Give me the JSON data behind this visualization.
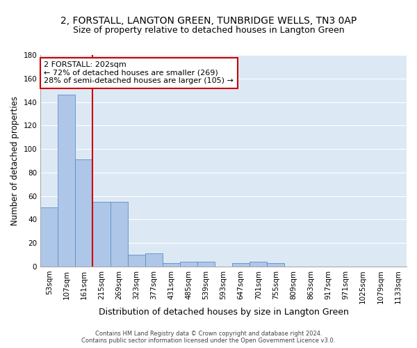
{
  "title": "2, FORSTALL, LANGTON GREEN, TUNBRIDGE WELLS, TN3 0AP",
  "subtitle": "Size of property relative to detached houses in Langton Green",
  "xlabel": "Distribution of detached houses by size in Langton Green",
  "ylabel": "Number of detached properties",
  "footnote1": "Contains HM Land Registry data © Crown copyright and database right 2024.",
  "footnote2": "Contains public sector information licensed under the Open Government Licence v3.0.",
  "bar_labels": [
    "53sqm",
    "107sqm",
    "161sqm",
    "215sqm",
    "269sqm",
    "323sqm",
    "377sqm",
    "431sqm",
    "485sqm",
    "539sqm",
    "593sqm",
    "647sqm",
    "701sqm",
    "755sqm",
    "809sqm",
    "863sqm",
    "917sqm",
    "971sqm",
    "1025sqm",
    "1079sqm",
    "1133sqm"
  ],
  "bar_values": [
    50,
    146,
    91,
    55,
    55,
    10,
    11,
    3,
    4,
    4,
    0,
    3,
    4,
    3,
    0,
    0,
    0,
    0,
    0,
    0,
    0
  ],
  "bar_color": "#aec6e8",
  "bar_edge_color": "#5a8fc3",
  "property_line_label": "2 FORSTALL: 202sqm",
  "annotation_line1": "← 72% of detached houses are smaller (269)",
  "annotation_line2": "28% of semi-detached houses are larger (105) →",
  "annotation_box_color": "#ffffff",
  "annotation_box_edge": "#cc0000",
  "vline_color": "#cc0000",
  "vline_x_index": 2.5,
  "ylim": [
    0,
    180
  ],
  "yticks": [
    0,
    20,
    40,
    60,
    80,
    100,
    120,
    140,
    160,
    180
  ],
  "background_color": "#dce9f5",
  "grid_color": "#ffffff",
  "title_fontsize": 10,
  "subtitle_fontsize": 9,
  "ylabel_fontsize": 8.5,
  "xlabel_fontsize": 9,
  "tick_fontsize": 7.5,
  "annot_fontsize": 8
}
